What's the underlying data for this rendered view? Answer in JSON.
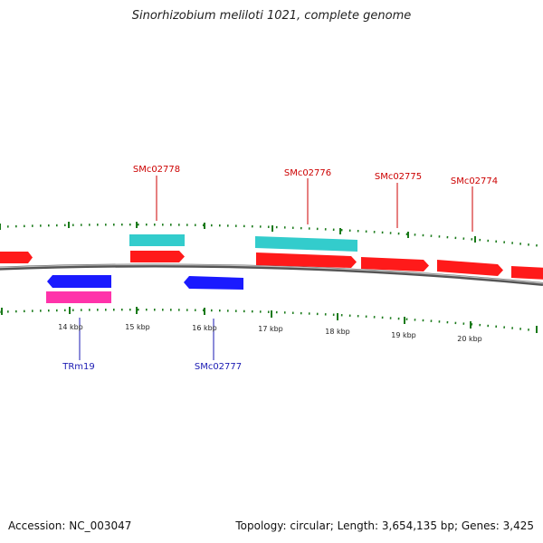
{
  "title": "Sinorhizobium meliloti 1021, complete genome",
  "footer": {
    "accession": "Accession: NC_003047",
    "summary": "Topology: circular; Length: 3,654,135 bp; Genes: 3,425"
  },
  "colors": {
    "forward_gene": "#ff1a1a",
    "reverse_gene": "#1a1aff",
    "cds_forward": "#33cccc",
    "rna_reverse": "#ff33aa",
    "forward_label": "#cc0000",
    "reverse_label": "#1a1ab3",
    "tick": "#1a7a1a",
    "backbone": "#777777"
  },
  "scale_labels": [
    "14 kbp",
    "15 kbp",
    "16 kbp",
    "17 kbp",
    "18 kbp",
    "19 kbp",
    "20 kbp"
  ],
  "gene_labels": {
    "forward": [
      "SMc02778",
      "SMc02776",
      "SMc02775",
      "SMc02774"
    ],
    "reverse": [
      "TRm19",
      "SMc02777"
    ]
  }
}
